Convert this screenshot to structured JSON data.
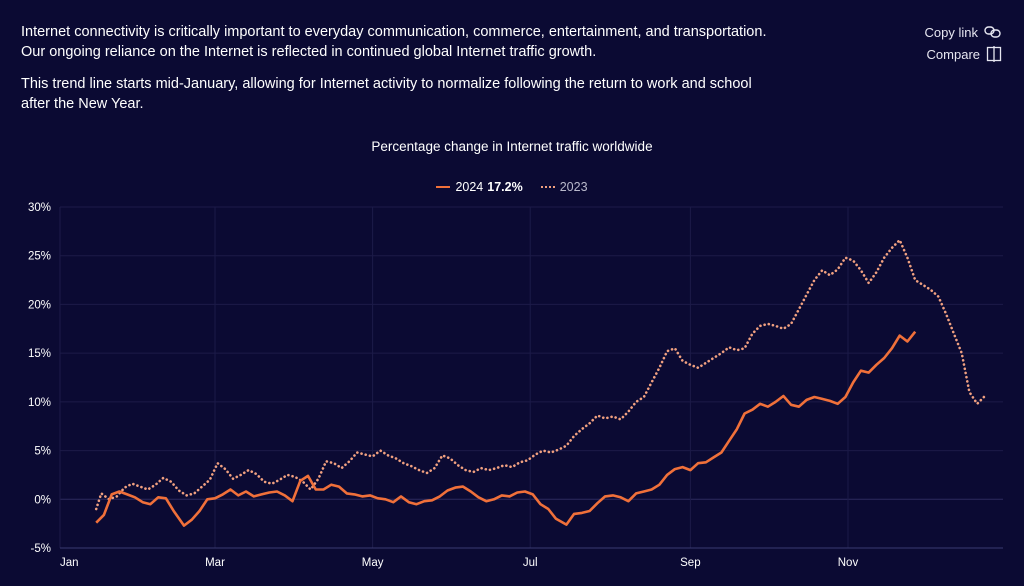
{
  "intro": {
    "p1": "Internet connectivity is critically important to everyday communication, commerce, entertainment, and transportation. Our ongoing reliance on the Internet is reflected in continued global Internet traffic growth.",
    "p2": "This trend line starts mid-January, allowing for Internet activity to normalize following the return to work and school after the New Year."
  },
  "actions": {
    "copy_link": "Copy link",
    "compare": "Compare"
  },
  "colors": {
    "background": "#0b0a33",
    "series_2024": "#f0703a",
    "series_2023": "#f0a080",
    "grid": "#1e1d4a"
  },
  "chart_data": {
    "type": "line",
    "title": "Percentage change in Internet traffic worldwide",
    "y_ticks": [
      "30%",
      "25%",
      "20%",
      "15%",
      "10%",
      "5%",
      "0%",
      "-5%"
    ],
    "x_ticks": [
      "Jan",
      "Mar",
      "May",
      "Jul",
      "Sep",
      "Nov"
    ],
    "ylim": [
      -5,
      30
    ],
    "grid": true,
    "legend_position": "top-center",
    "series": [
      {
        "name": "2024",
        "legend_value": "17.2%",
        "style": "solid",
        "points": [
          [
            "2024-01-15",
            -2.4
          ],
          [
            "2024-01-18",
            -1.6
          ],
          [
            "2024-01-21",
            0.5
          ],
          [
            "2024-01-24",
            0.8
          ],
          [
            "2024-01-27",
            0.5
          ],
          [
            "2024-01-30",
            0.2
          ],
          [
            "2024-02-02",
            -0.3
          ],
          [
            "2024-02-05",
            -0.5
          ],
          [
            "2024-02-08",
            0.2
          ],
          [
            "2024-02-11",
            0.1
          ],
          [
            "2024-02-14",
            -1.2
          ],
          [
            "2024-02-18",
            -2.7
          ],
          [
            "2024-02-21",
            -2.1
          ],
          [
            "2024-02-24",
            -1.2
          ],
          [
            "2024-02-27",
            0.0
          ],
          [
            "2024-03-01",
            0.1
          ],
          [
            "2024-03-04",
            0.5
          ],
          [
            "2024-03-07",
            1.0
          ],
          [
            "2024-03-10",
            0.4
          ],
          [
            "2024-03-13",
            0.8
          ],
          [
            "2024-03-16",
            0.3
          ],
          [
            "2024-03-19",
            0.5
          ],
          [
            "2024-03-22",
            0.7
          ],
          [
            "2024-03-25",
            0.8
          ],
          [
            "2024-03-28",
            0.4
          ],
          [
            "2024-03-31",
            -0.2
          ],
          [
            "2024-04-03",
            1.9
          ],
          [
            "2024-04-06",
            2.4
          ],
          [
            "2024-04-09",
            1.0
          ],
          [
            "2024-04-12",
            1.0
          ],
          [
            "2024-04-15",
            1.5
          ],
          [
            "2024-04-18",
            1.3
          ],
          [
            "2024-04-21",
            0.6
          ],
          [
            "2024-04-24",
            0.5
          ],
          [
            "2024-04-27",
            0.3
          ],
          [
            "2024-04-30",
            0.4
          ],
          [
            "2024-05-03",
            0.1
          ],
          [
            "2024-05-06",
            0.0
          ],
          [
            "2024-05-09",
            -0.3
          ],
          [
            "2024-05-12",
            0.3
          ],
          [
            "2024-05-15",
            -0.3
          ],
          [
            "2024-05-18",
            -0.5
          ],
          [
            "2024-05-21",
            -0.2
          ],
          [
            "2024-05-24",
            -0.1
          ],
          [
            "2024-05-27",
            0.3
          ],
          [
            "2024-05-30",
            0.9
          ],
          [
            "2024-06-02",
            1.2
          ],
          [
            "2024-06-05",
            1.3
          ],
          [
            "2024-06-08",
            0.8
          ],
          [
            "2024-06-11",
            0.2
          ],
          [
            "2024-06-14",
            -0.2
          ],
          [
            "2024-06-17",
            0.0
          ],
          [
            "2024-06-20",
            0.4
          ],
          [
            "2024-06-23",
            0.3
          ],
          [
            "2024-06-26",
            0.7
          ],
          [
            "2024-06-29",
            0.8
          ],
          [
            "2024-07-02",
            0.5
          ],
          [
            "2024-07-05",
            -0.5
          ],
          [
            "2024-07-08",
            -1.0
          ],
          [
            "2024-07-11",
            -2.0
          ],
          [
            "2024-07-15",
            -2.6
          ],
          [
            "2024-07-18",
            -1.5
          ],
          [
            "2024-07-21",
            -1.4
          ],
          [
            "2024-07-24",
            -1.2
          ],
          [
            "2024-07-27",
            -0.4
          ],
          [
            "2024-07-30",
            0.3
          ],
          [
            "2024-08-02",
            0.4
          ],
          [
            "2024-08-05",
            0.2
          ],
          [
            "2024-08-08",
            -0.2
          ],
          [
            "2024-08-11",
            0.6
          ],
          [
            "2024-08-14",
            0.8
          ],
          [
            "2024-08-17",
            1.0
          ],
          [
            "2024-08-20",
            1.5
          ],
          [
            "2024-08-23",
            2.5
          ],
          [
            "2024-08-26",
            3.1
          ],
          [
            "2024-08-29",
            3.3
          ],
          [
            "2024-09-01",
            3.0
          ],
          [
            "2024-09-04",
            3.7
          ],
          [
            "2024-09-07",
            3.8
          ],
          [
            "2024-09-10",
            4.3
          ],
          [
            "2024-09-13",
            4.8
          ],
          [
            "2024-09-16",
            6.0
          ],
          [
            "2024-09-19",
            7.2
          ],
          [
            "2024-09-22",
            8.8
          ],
          [
            "2024-09-25",
            9.2
          ],
          [
            "2024-09-28",
            9.8
          ],
          [
            "2024-10-01",
            9.5
          ],
          [
            "2024-10-04",
            10.0
          ],
          [
            "2024-10-07",
            10.6
          ],
          [
            "2024-10-10",
            9.7
          ],
          [
            "2024-10-13",
            9.5
          ],
          [
            "2024-10-16",
            10.2
          ],
          [
            "2024-10-19",
            10.5
          ],
          [
            "2024-10-22",
            10.3
          ],
          [
            "2024-10-25",
            10.1
          ],
          [
            "2024-10-28",
            9.8
          ],
          [
            "2024-10-31",
            10.5
          ],
          [
            "2024-11-03",
            12.0
          ],
          [
            "2024-11-06",
            13.2
          ],
          [
            "2024-11-09",
            13.0
          ],
          [
            "2024-11-12",
            13.8
          ],
          [
            "2024-11-15",
            14.5
          ],
          [
            "2024-11-18",
            15.5
          ],
          [
            "2024-11-21",
            16.8
          ],
          [
            "2024-11-24",
            16.2
          ],
          [
            "2024-11-27",
            17.2
          ]
        ]
      },
      {
        "name": "2023",
        "style": "dotted",
        "points": [
          [
            "2024-01-15",
            -1.0
          ],
          [
            "2024-01-17",
            0.6
          ],
          [
            "2024-01-20",
            0.0
          ],
          [
            "2024-01-23",
            0.3
          ],
          [
            "2024-01-26",
            1.2
          ],
          [
            "2024-01-29",
            1.6
          ],
          [
            "2024-02-01",
            1.3
          ],
          [
            "2024-02-04",
            1.0
          ],
          [
            "2024-02-07",
            1.5
          ],
          [
            "2024-02-10",
            2.2
          ],
          [
            "2024-02-13",
            1.8
          ],
          [
            "2024-02-16",
            0.9
          ],
          [
            "2024-02-19",
            0.4
          ],
          [
            "2024-02-22",
            0.6
          ],
          [
            "2024-02-25",
            1.3
          ],
          [
            "2024-02-28",
            2.0
          ],
          [
            "2024-03-02",
            3.7
          ],
          [
            "2024-03-05",
            3.1
          ],
          [
            "2024-03-08",
            2.1
          ],
          [
            "2024-03-11",
            2.5
          ],
          [
            "2024-03-14",
            3.0
          ],
          [
            "2024-03-17",
            2.6
          ],
          [
            "2024-03-20",
            1.8
          ],
          [
            "2024-03-23",
            1.6
          ],
          [
            "2024-03-26",
            2.0
          ],
          [
            "2024-03-29",
            2.5
          ],
          [
            "2024-04-01",
            2.3
          ],
          [
            "2024-04-04",
            1.8
          ],
          [
            "2024-04-07",
            1.0
          ],
          [
            "2024-04-10",
            2.1
          ],
          [
            "2024-04-13",
            3.9
          ],
          [
            "2024-04-16",
            3.7
          ],
          [
            "2024-04-19",
            3.2
          ],
          [
            "2024-04-22",
            3.9
          ],
          [
            "2024-04-25",
            4.8
          ],
          [
            "2024-04-28",
            4.6
          ],
          [
            "2024-05-01",
            4.4
          ],
          [
            "2024-05-04",
            5.0
          ],
          [
            "2024-05-07",
            4.5
          ],
          [
            "2024-05-10",
            4.2
          ],
          [
            "2024-05-13",
            3.7
          ],
          [
            "2024-05-16",
            3.4
          ],
          [
            "2024-05-19",
            3.0
          ],
          [
            "2024-05-22",
            2.7
          ],
          [
            "2024-05-25",
            3.2
          ],
          [
            "2024-05-28",
            4.5
          ],
          [
            "2024-05-31",
            4.2
          ],
          [
            "2024-06-03",
            3.5
          ],
          [
            "2024-06-06",
            3.0
          ],
          [
            "2024-06-09",
            2.8
          ],
          [
            "2024-06-12",
            3.2
          ],
          [
            "2024-06-15",
            3.0
          ],
          [
            "2024-06-18",
            3.2
          ],
          [
            "2024-06-21",
            3.5
          ],
          [
            "2024-06-24",
            3.3
          ],
          [
            "2024-06-27",
            3.8
          ],
          [
            "2024-06-30",
            4.0
          ],
          [
            "2024-07-03",
            4.6
          ],
          [
            "2024-07-06",
            5.0
          ],
          [
            "2024-07-09",
            4.8
          ],
          [
            "2024-07-12",
            5.1
          ],
          [
            "2024-07-15",
            5.5
          ],
          [
            "2024-07-18",
            6.5
          ],
          [
            "2024-07-21",
            7.2
          ],
          [
            "2024-07-24",
            7.8
          ],
          [
            "2024-07-27",
            8.6
          ],
          [
            "2024-07-30",
            8.3
          ],
          [
            "2024-08-02",
            8.5
          ],
          [
            "2024-08-05",
            8.2
          ],
          [
            "2024-08-08",
            9.0
          ],
          [
            "2024-08-11",
            10.0
          ],
          [
            "2024-08-14",
            10.5
          ],
          [
            "2024-08-17",
            12.0
          ],
          [
            "2024-08-20",
            13.5
          ],
          [
            "2024-08-23",
            15.2
          ],
          [
            "2024-08-26",
            15.5
          ],
          [
            "2024-08-29",
            14.2
          ],
          [
            "2024-09-01",
            13.8
          ],
          [
            "2024-09-04",
            13.5
          ],
          [
            "2024-09-07",
            14.0
          ],
          [
            "2024-09-10",
            14.5
          ],
          [
            "2024-09-13",
            15.0
          ],
          [
            "2024-09-16",
            15.6
          ],
          [
            "2024-09-19",
            15.3
          ],
          [
            "2024-09-22",
            15.5
          ],
          [
            "2024-09-25",
            17.0
          ],
          [
            "2024-09-28",
            17.8
          ],
          [
            "2024-10-01",
            18.0
          ],
          [
            "2024-10-04",
            17.8
          ],
          [
            "2024-10-07",
            17.5
          ],
          [
            "2024-10-10",
            18.0
          ],
          [
            "2024-10-13",
            19.5
          ],
          [
            "2024-10-16",
            21.0
          ],
          [
            "2024-10-19",
            22.5
          ],
          [
            "2024-10-22",
            23.5
          ],
          [
            "2024-10-25",
            23.0
          ],
          [
            "2024-10-28",
            23.6
          ],
          [
            "2024-10-31",
            24.8
          ],
          [
            "2024-11-03",
            24.5
          ],
          [
            "2024-11-06",
            23.5
          ],
          [
            "2024-11-09",
            22.2
          ],
          [
            "2024-11-12",
            23.3
          ],
          [
            "2024-11-15",
            24.8
          ],
          [
            "2024-11-18",
            25.8
          ],
          [
            "2024-11-21",
            26.6
          ],
          [
            "2024-11-24",
            24.8
          ],
          [
            "2024-11-27",
            22.5
          ],
          [
            "2024-11-30",
            22.0
          ],
          [
            "2024-12-03",
            21.5
          ],
          [
            "2024-12-06",
            20.8
          ],
          [
            "2024-12-09",
            19.0
          ],
          [
            "2024-12-12",
            17.0
          ],
          [
            "2024-12-15",
            15.0
          ],
          [
            "2024-12-18",
            11.0
          ],
          [
            "2024-12-21",
            9.8
          ],
          [
            "2024-12-24",
            10.6
          ]
        ]
      }
    ]
  }
}
